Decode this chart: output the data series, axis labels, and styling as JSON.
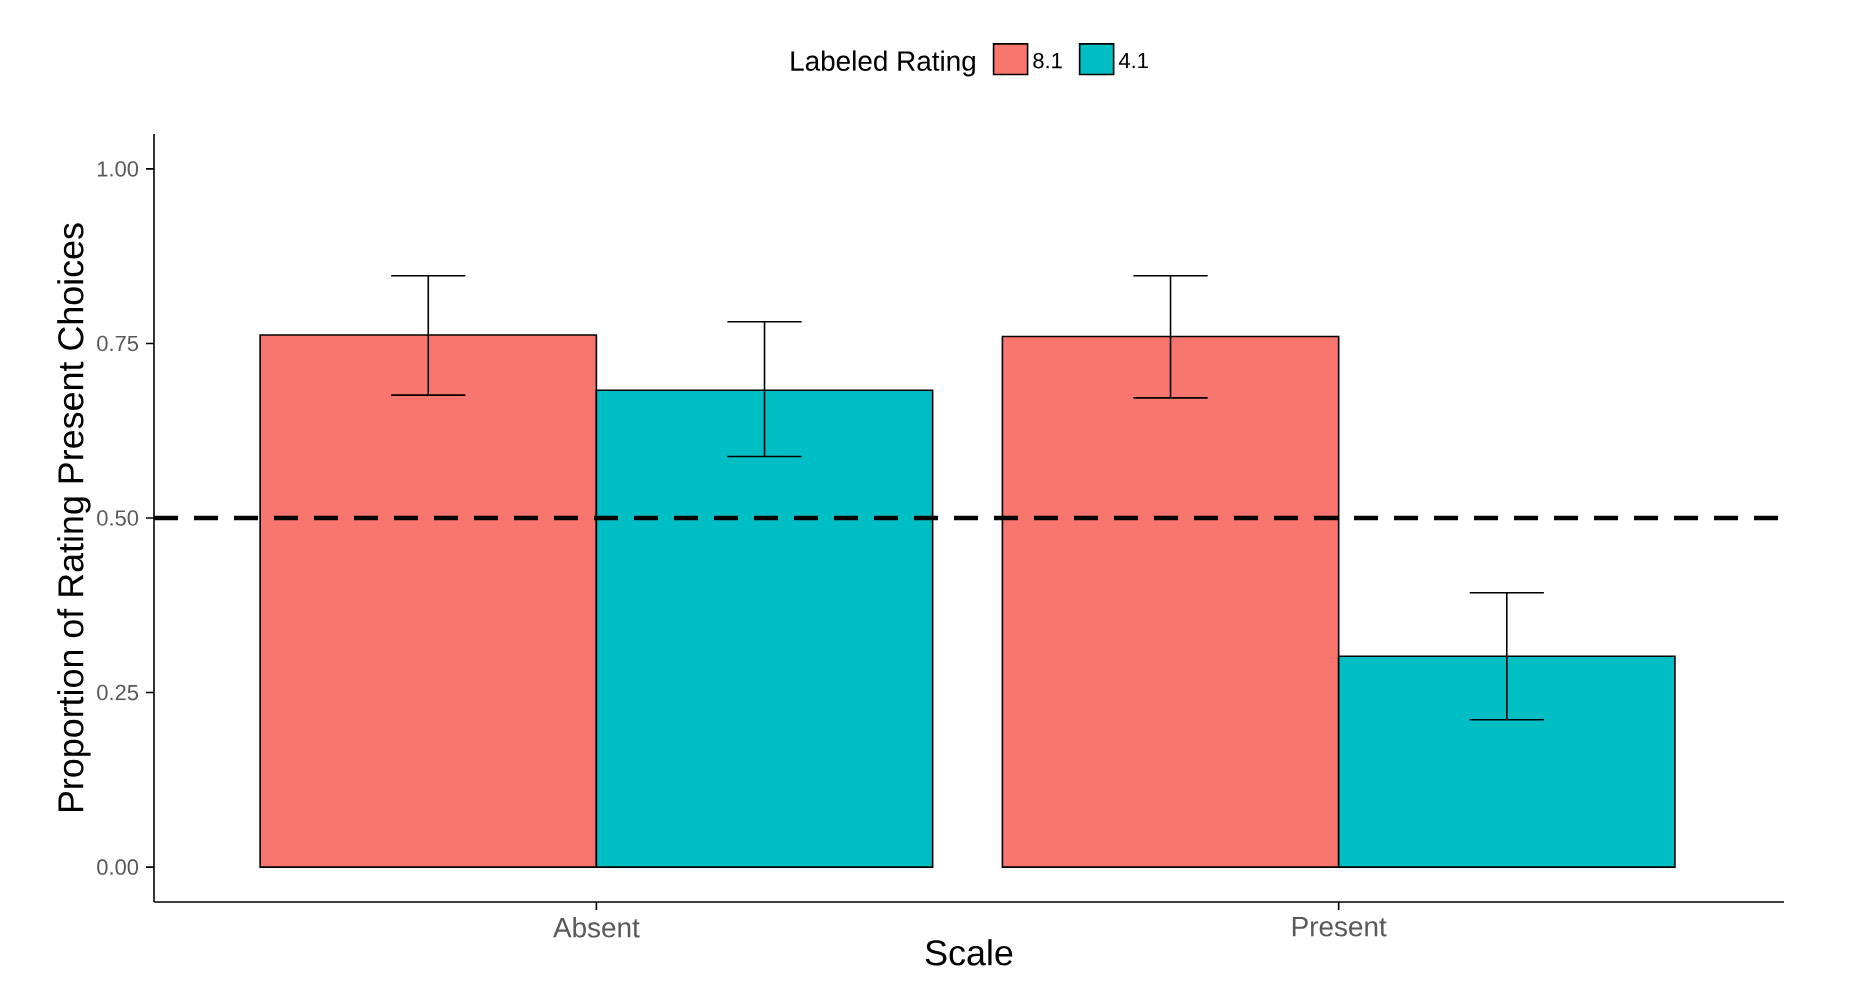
{
  "chart_data": {
    "type": "bar",
    "xlabel": "Scale",
    "ylabel": "Proportion of Rating Present Choices",
    "legend_title": "Labeled Rating",
    "legend": "top",
    "categories": [
      "Absent",
      "Present"
    ],
    "series": [
      {
        "name": "8.1",
        "color": "#f8766d",
        "values": [
          0.762,
          0.76
        ],
        "errors": [
          [
            0.676,
            0.847
          ],
          [
            0.672,
            0.847
          ]
        ]
      },
      {
        "name": "4.1",
        "color": "#00bfc4",
        "values": [
          0.683,
          0.302
        ],
        "errors": [
          [
            0.588,
            0.781
          ],
          [
            0.211,
            0.393
          ]
        ]
      }
    ],
    "ylim": [
      -0.05,
      1.05
    ],
    "yticks": [
      {
        "value": 0,
        "label": "0.00"
      },
      {
        "value": 0.25,
        "label": "0.25"
      },
      {
        "value": 0.5,
        "label": "0.50"
      },
      {
        "value": 0.75,
        "label": "0.75"
      },
      {
        "value": 1,
        "label": "1.00"
      }
    ],
    "ref_lines": [
      {
        "axis": "y",
        "value": 0.5,
        "line_style": "dashed",
        "color": "#000000"
      }
    ]
  }
}
